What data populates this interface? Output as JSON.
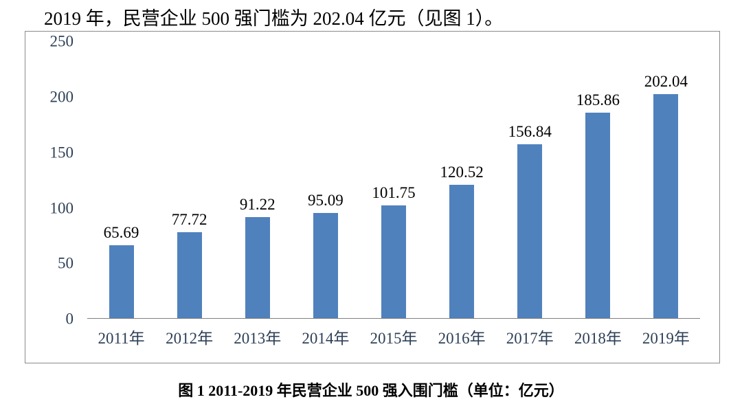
{
  "page": {
    "intro_text": "2019 年，民营企业 500 强门槛为 202.04 亿元（见图 1）。",
    "caption": "图 1  2011-2019 年民营企业 500 强入围门槛（单位：亿元）"
  },
  "chart_data": {
    "type": "bar",
    "title": "",
    "categories": [
      "2011年",
      "2012年",
      "2013年",
      "2014年",
      "2015年",
      "2016年",
      "2017年",
      "2018年",
      "2019年"
    ],
    "values": [
      65.69,
      77.72,
      91.22,
      95.09,
      101.75,
      120.52,
      156.84,
      185.86,
      202.04
    ],
    "ylim": [
      0,
      250
    ],
    "yticks": [
      0,
      50,
      100,
      150,
      200,
      250
    ],
    "grid": false,
    "legend": "none",
    "data_labels": true,
    "colors": {
      "bar": "#4f81bd",
      "axis_text": "#2e4057",
      "data_label": "#000000",
      "axis_line": "#7f7f7f",
      "frame_border": "#8a8a8a"
    }
  }
}
